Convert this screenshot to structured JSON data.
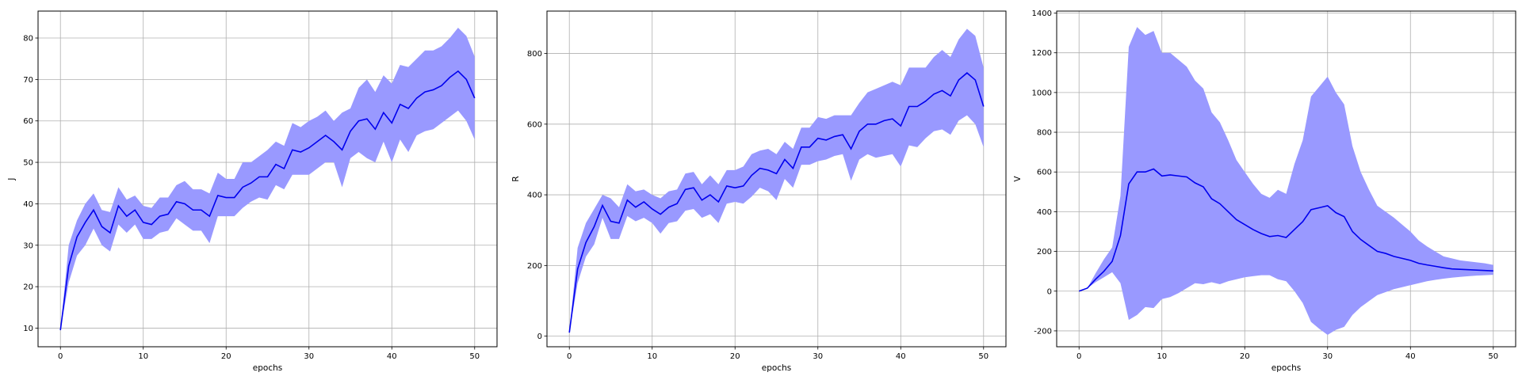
{
  "colors": {
    "line": "#0000ee",
    "band": "#9999ff",
    "grid": "#b0b0b0",
    "axis": "#000000"
  },
  "chart_data": [
    {
      "type": "line",
      "title": "",
      "xlabel": "epochs",
      "ylabel": "J",
      "xlim": [
        -2.7,
        52.7
      ],
      "ylim": [
        5.5,
        86.5
      ],
      "xticks": [
        0,
        10,
        20,
        30,
        40,
        50
      ],
      "yticks": [
        10,
        20,
        30,
        40,
        50,
        60,
        70,
        80
      ],
      "grid": true,
      "x": [
        0,
        1,
        2,
        3,
        4,
        5,
        6,
        7,
        8,
        9,
        10,
        11,
        12,
        13,
        14,
        15,
        16,
        17,
        18,
        19,
        20,
        21,
        22,
        23,
        24,
        25,
        26,
        27,
        28,
        29,
        30,
        31,
        32,
        33,
        34,
        35,
        36,
        37,
        38,
        39,
        40,
        41,
        42,
        43,
        44,
        45,
        46,
        47,
        48,
        49,
        50
      ],
      "series": [
        {
          "name": "J",
          "mean": [
            9.5,
            25,
            32,
            35.5,
            38.5,
            34.5,
            33,
            39.5,
            37,
            38.5,
            35.5,
            35,
            37,
            37.5,
            40.5,
            40,
            38.5,
            38.5,
            37,
            42,
            41.5,
            41.5,
            44,
            45,
            46.5,
            46.5,
            49.5,
            48.5,
            53,
            52.5,
            53.5,
            55,
            56.5,
            55,
            53,
            57.5,
            60,
            60.5,
            58,
            62,
            59.5,
            64,
            63,
            65.5,
            67,
            67.5,
            68.5,
            70.5,
            72,
            70,
            65.5
          ],
          "upper": [
            9.5,
            30,
            36,
            40,
            42.5,
            38.5,
            38,
            44,
            41,
            42,
            39.5,
            39,
            41.5,
            41.5,
            44.5,
            45.5,
            43.5,
            43.5,
            42.5,
            47.5,
            46,
            46,
            50,
            50,
            51.5,
            53,
            55,
            54,
            59.5,
            58.5,
            60,
            61,
            62.5,
            60,
            62,
            63,
            68,
            70,
            67,
            71,
            69,
            73.5,
            73,
            75,
            77,
            77,
            78,
            80,
            82.5,
            80.5,
            75.5
          ],
          "lower": [
            9.5,
            21,
            27.5,
            30,
            34,
            30,
            28.5,
            35,
            33,
            35,
            31.5,
            31.5,
            33,
            33.5,
            36.5,
            35,
            33.5,
            33.5,
            30.5,
            37,
            37,
            37,
            39,
            40.5,
            41.5,
            41,
            44.5,
            43.5,
            47,
            47,
            47,
            48.5,
            50,
            50,
            44,
            51,
            52.5,
            51,
            50,
            55,
            50,
            55.5,
            52.5,
            56.5,
            57.5,
            58,
            59.5,
            61,
            62.5,
            60,
            55.5
          ]
        }
      ]
    },
    {
      "type": "line",
      "title": "",
      "xlabel": "epochs",
      "ylabel": "R",
      "xlim": [
        -2.7,
        52.7
      ],
      "ylim": [
        -30,
        920
      ],
      "xticks": [
        0,
        10,
        20,
        30,
        40,
        50
      ],
      "yticks": [
        0,
        200,
        400,
        600,
        800
      ],
      "grid": true,
      "x": [
        0,
        1,
        2,
        3,
        4,
        5,
        6,
        7,
        8,
        9,
        10,
        11,
        12,
        13,
        14,
        15,
        16,
        17,
        18,
        19,
        20,
        21,
        22,
        23,
        24,
        25,
        26,
        27,
        28,
        29,
        30,
        31,
        32,
        33,
        34,
        35,
        36,
        37,
        38,
        39,
        40,
        41,
        42,
        43,
        44,
        45,
        46,
        47,
        48,
        49,
        50
      ],
      "series": [
        {
          "name": "R",
          "mean": [
            10,
            190,
            265,
            310,
            370,
            325,
            320,
            385,
            365,
            380,
            360,
            345,
            365,
            375,
            415,
            420,
            385,
            400,
            380,
            425,
            420,
            425,
            455,
            475,
            470,
            460,
            500,
            475,
            535,
            535,
            560,
            555,
            565,
            570,
            530,
            580,
            600,
            600,
            610,
            615,
            595,
            650,
            650,
            665,
            685,
            695,
            680,
            725,
            745,
            725,
            650
          ],
          "upper": [
            10,
            250,
            320,
            360,
            400,
            390,
            365,
            430,
            410,
            415,
            400,
            390,
            410,
            415,
            460,
            465,
            430,
            455,
            430,
            470,
            470,
            480,
            515,
            525,
            530,
            515,
            550,
            530,
            590,
            590,
            620,
            615,
            625,
            625,
            625,
            660,
            690,
            700,
            710,
            720,
            710,
            760,
            760,
            760,
            790,
            810,
            790,
            840,
            870,
            850,
            760
          ],
          "lower": [
            10,
            150,
            225,
            260,
            335,
            275,
            275,
            340,
            325,
            335,
            320,
            290,
            320,
            325,
            355,
            360,
            335,
            345,
            320,
            375,
            380,
            375,
            395,
            420,
            410,
            385,
            445,
            420,
            485,
            485,
            495,
            500,
            510,
            515,
            440,
            500,
            515,
            505,
            510,
            515,
            480,
            540,
            535,
            560,
            580,
            585,
            570,
            610,
            625,
            600,
            535
          ]
        }
      ]
    },
    {
      "type": "line",
      "title": "",
      "xlabel": "epochs",
      "ylabel": "V",
      "xlim": [
        -2.7,
        52.7
      ],
      "ylim": [
        -280,
        1410
      ],
      "xticks": [
        0,
        10,
        20,
        30,
        40,
        50
      ],
      "yticks": [
        -200,
        0,
        200,
        400,
        600,
        800,
        1000,
        1200,
        1400
      ],
      "grid": true,
      "x": [
        0,
        1,
        2,
        3,
        4,
        5,
        6,
        7,
        8,
        9,
        10,
        11,
        12,
        13,
        14,
        15,
        16,
        17,
        18,
        19,
        20,
        21,
        22,
        23,
        24,
        25,
        26,
        27,
        28,
        29,
        30,
        31,
        32,
        33,
        34,
        35,
        36,
        37,
        38,
        39,
        40,
        41,
        42,
        43,
        44,
        45,
        46,
        47,
        48,
        49,
        50
      ],
      "series": [
        {
          "name": "V",
          "mean": [
            0,
            15,
            60,
            100,
            150,
            280,
            540,
            600,
            600,
            615,
            580,
            585,
            580,
            575,
            545,
            525,
            465,
            440,
            400,
            360,
            335,
            310,
            290,
            275,
            280,
            270,
            310,
            350,
            410,
            420,
            430,
            395,
            375,
            300,
            260,
            230,
            200,
            190,
            175,
            165,
            155,
            140,
            132,
            125,
            118,
            112,
            110,
            108,
            106,
            104,
            102
          ],
          "upper": [
            0,
            15,
            90,
            160,
            220,
            480,
            1230,
            1330,
            1290,
            1310,
            1200,
            1200,
            1165,
            1130,
            1060,
            1020,
            900,
            850,
            760,
            660,
            600,
            540,
            490,
            470,
            510,
            490,
            640,
            760,
            980,
            1030,
            1080,
            1000,
            940,
            730,
            600,
            510,
            430,
            400,
            370,
            335,
            300,
            255,
            225,
            200,
            175,
            165,
            155,
            150,
            145,
            140,
            132
          ],
          "lower": [
            0,
            15,
            45,
            70,
            95,
            40,
            -145,
            -120,
            -80,
            -85,
            -40,
            -30,
            -10,
            15,
            40,
            35,
            45,
            35,
            50,
            60,
            70,
            75,
            80,
            80,
            60,
            50,
            0,
            -60,
            -155,
            -190,
            -220,
            -195,
            -180,
            -120,
            -80,
            -50,
            -20,
            -5,
            10,
            20,
            30,
            40,
            50,
            57,
            63,
            68,
            72,
            75,
            78,
            80,
            82
          ]
        }
      ]
    }
  ]
}
